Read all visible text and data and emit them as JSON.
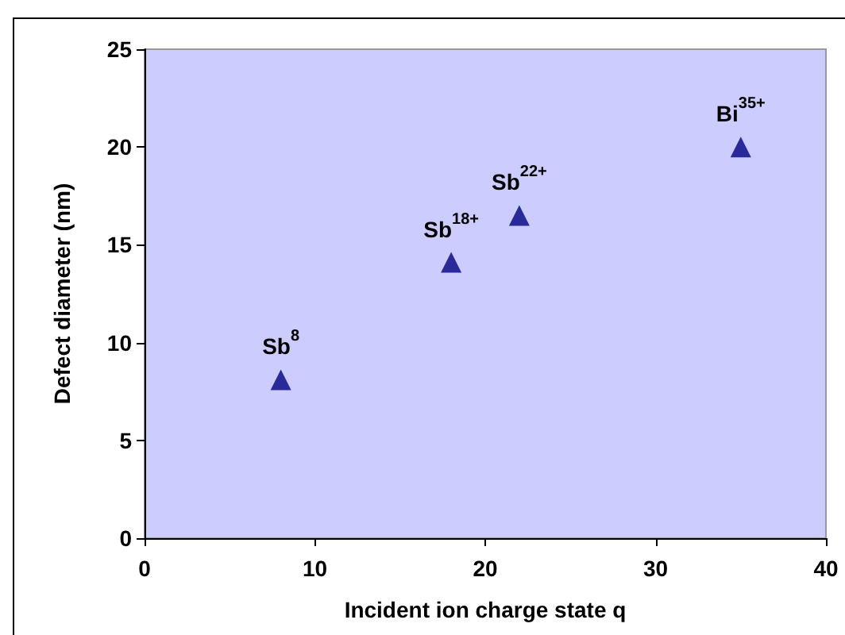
{
  "chart_data": {
    "type": "scatter",
    "xlabel": "Incident ion charge state q",
    "ylabel": "Defect diameter (nm)",
    "x": [
      8,
      18,
      22,
      35
    ],
    "series": [
      {
        "color": "#000080",
        "values": [
          8.1,
          14.1,
          16.5,
          20.0
        ]
      }
    ],
    "xlim": [
      0,
      40
    ],
    "xticks": [
      0,
      10,
      20,
      30,
      40
    ],
    "ylim": [
      0,
      25
    ],
    "yticks": [
      0,
      5,
      10,
      15,
      20,
      25
    ],
    "marker": "triangle",
    "grid": false,
    "annotations": [
      {
        "text": "Sb$^{8}$",
        "x": 8,
        "y": 8.1
      },
      {
        "text": "Sb$^{18+}$",
        "x": 18,
        "y": 14.1
      },
      {
        "text": "Sb$^{22+}$",
        "x": 22,
        "y": 16.5
      },
      {
        "text": "Bi$^{35+}$",
        "x": 35,
        "y": 20.0
      }
    ]
  }
}
